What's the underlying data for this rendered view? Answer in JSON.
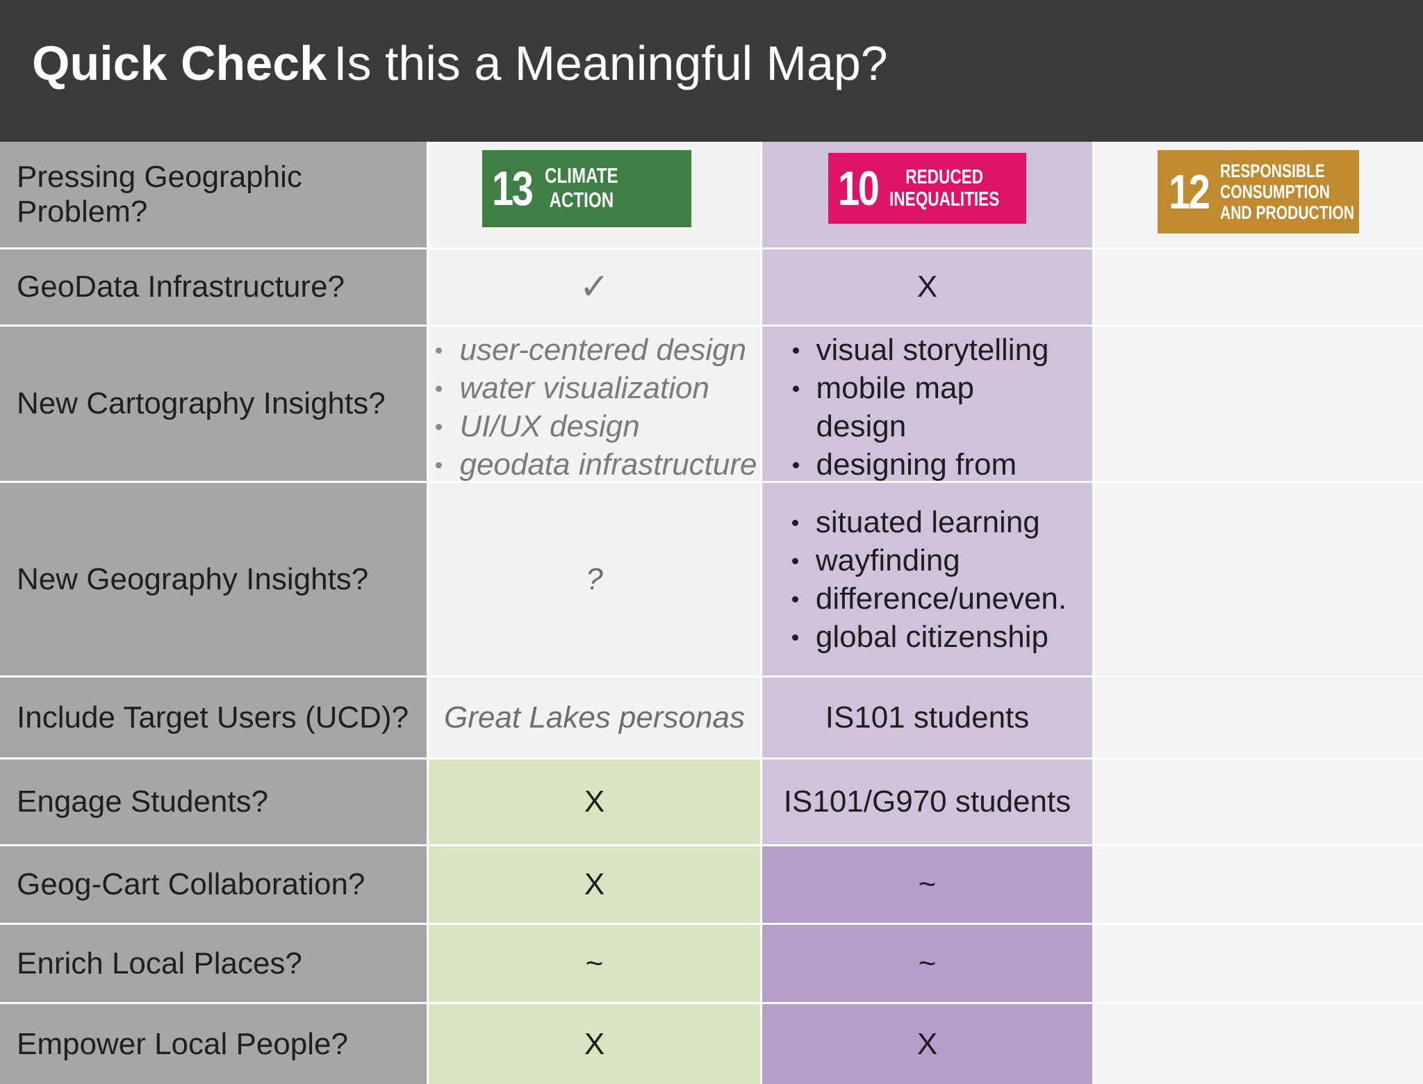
{
  "header": {
    "title_bold": "Quick Check",
    "title_rest": "Is this a Meaningful Map?"
  },
  "badges": {
    "b13": {
      "number": "13",
      "line1": "CLIMATE",
      "line2": "ACTION",
      "color": "#3f7e44"
    },
    "b10": {
      "number": "10",
      "line1": "REDUCED",
      "line2": "INEQUALITIES",
      "color": "#dd1367"
    },
    "b12": {
      "number": "12",
      "line1": "RESPONSIBLE",
      "line2": "CONSUMPTION",
      "line3": "AND PRODUCTION",
      "color": "#bf8b2e"
    }
  },
  "rows": {
    "r1": {
      "label": "Pressing Geographic Problem?"
    },
    "r2": {
      "label": "GeoData Infrastructure?",
      "c1": "✓",
      "c2": "X"
    },
    "r3": {
      "label": "New Cartography Insights?",
      "c1": [
        "user-centered design",
        "water visualization",
        "UI/UX design",
        "geodata infrastructure"
      ],
      "c2": [
        "visual storytelling",
        "mobile map design",
        "designing from the margin"
      ]
    },
    "r4": {
      "label": "New Geography Insights?",
      "c1": "?",
      "c2": [
        "situated learning",
        "wayfinding",
        "difference/uneven.",
        "global citizenship"
      ]
    },
    "r5": {
      "label": "Include Target Users (UCD)?",
      "c1": "Great Lakes personas",
      "c2": "IS101 students"
    },
    "r6": {
      "label": "Engage Students?",
      "c1": "X",
      "c2": "IS101/G970 students"
    },
    "r7": {
      "label": "Geog-Cart Collaboration?",
      "c1": "X",
      "c2": "~"
    },
    "r8": {
      "label": "Enrich Local Places?",
      "c1": "~",
      "c2": "~"
    },
    "r9": {
      "label": "Empower Local People?",
      "c1": "X",
      "c2": "X"
    }
  },
  "colors": {
    "header_bg": "#3b3b3b",
    "label_bg": "#a6a6a6",
    "light_purple": "#cfc3dc",
    "dark_purple": "#b39fc7",
    "light_green": "#d8e5c0"
  }
}
